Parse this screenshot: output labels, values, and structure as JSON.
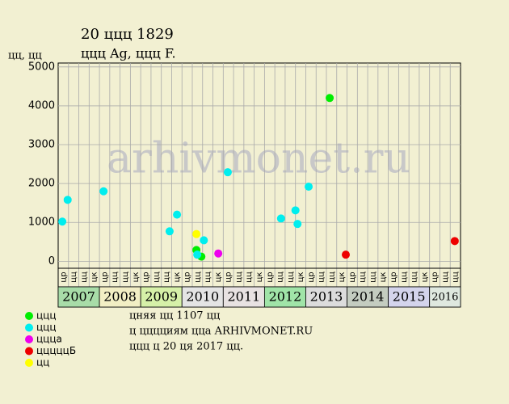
{
  "chart_data": {
    "type": "scatter",
    "title": "20 ццц 1829",
    "subtitle": "ццц Ag, ццц F.",
    "y_label": "цц, цц",
    "watermark": "arhivmonet.ru",
    "xlim": [
      2007,
      2016.75
    ],
    "ylim": [
      -180,
      5100
    ],
    "yticks": [
      0,
      1000,
      2000,
      3000,
      4000,
      5000
    ],
    "grid": true,
    "year_labels": [
      "2007",
      "2008",
      "2009",
      "2010",
      "2011",
      "2012",
      "2013",
      "2014",
      "2015",
      "2016"
    ],
    "quarter_labels": [
      "цр",
      "цц",
      "цц",
      "цк"
    ],
    "series": [
      {
        "name": "ццц",
        "color": "#00ee00",
        "x": [
          2010.35,
          2010.47,
          2013.58
        ],
        "values": [
          290,
          120,
          4200
        ]
      },
      {
        "name": "ццц",
        "color": "#00eeee",
        "x": [
          2007.1,
          2007.23,
          2008.1,
          2009.7,
          2009.88,
          2010.37,
          2010.53,
          2011.11,
          2012.4,
          2012.75,
          2012.8,
          2013.07
        ],
        "values": [
          1020,
          1580,
          1800,
          770,
          1200,
          170,
          540,
          2290,
          1100,
          1310,
          960,
          1920
        ]
      },
      {
        "name": "ццца",
        "color": "#ee00ee",
        "x": [
          2010.88
        ],
        "values": [
          200
        ]
      },
      {
        "name": "цццццБ",
        "color": "#ee0000",
        "x": [
          2013.97,
          2016.61
        ],
        "values": [
          170,
          520
        ]
      },
      {
        "name": "цц",
        "color": "#ffff00",
        "x": [
          2010.35
        ],
        "values": [
          700
        ]
      }
    ],
    "notes": [
      "цняя цц 1107 цц",
      "ц цццциям цца ARHIVMONET.RU",
      "ццц ц 20 ця 2017 цц."
    ]
  }
}
